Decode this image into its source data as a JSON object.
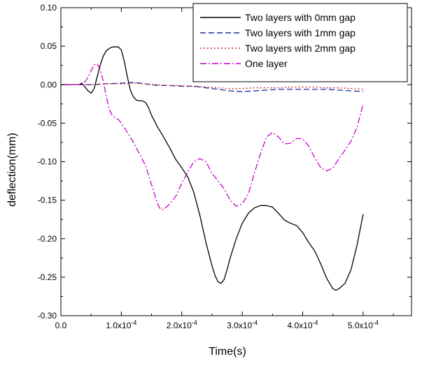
{
  "chart_data": {
    "type": "line",
    "title": "",
    "xlabel": "Time(s)",
    "ylabel": "deflection(mm)",
    "xlim": [
      0,
      0.00058
    ],
    "ylim": [
      -0.3,
      0.1
    ],
    "x_ticks": [
      {
        "value": 0.0,
        "label": "0.0"
      },
      {
        "value": 0.0001,
        "label": "1.0x10",
        "exp": "-4"
      },
      {
        "value": 0.0002,
        "label": "2.0x10",
        "exp": "-4"
      },
      {
        "value": 0.0003,
        "label": "3.0x10",
        "exp": "-4"
      },
      {
        "value": 0.0004,
        "label": "4.0x10",
        "exp": "-4"
      },
      {
        "value": 0.0005,
        "label": "5.0x10",
        "exp": "-4"
      }
    ],
    "y_ticks": [
      {
        "value": 0.1,
        "label": "0.10"
      },
      {
        "value": 0.05,
        "label": "0.05"
      },
      {
        "value": 0.0,
        "label": "0.00"
      },
      {
        "value": -0.05,
        "label": "-0.05"
      },
      {
        "value": -0.1,
        "label": "-0.10"
      },
      {
        "value": -0.15,
        "label": "-0.15"
      },
      {
        "value": -0.2,
        "label": "-0.20"
      },
      {
        "value": -0.25,
        "label": "-0.25"
      },
      {
        "value": -0.3,
        "label": "-0.30"
      }
    ],
    "legend_position": "top-right",
    "series": [
      {
        "name": "Two layers with 0mm gap",
        "color": "#000000",
        "dash": "solid",
        "points": [
          [
            0,
            0
          ],
          [
            3e-05,
            0
          ],
          [
            3.5e-05,
            0.002
          ],
          [
            4e-05,
            -0.003
          ],
          [
            4.5e-05,
            -0.008
          ],
          [
            5e-05,
            -0.011
          ],
          [
            5.5e-05,
            -0.005
          ],
          [
            6e-05,
            0.01
          ],
          [
            6.5e-05,
            0.025
          ],
          [
            7e-05,
            0.037
          ],
          [
            7.5e-05,
            0.044
          ],
          [
            8e-05,
            0.047
          ],
          [
            8.5e-05,
            0.049
          ],
          [
            9e-05,
            0.049
          ],
          [
            9.5e-05,
            0.049
          ],
          [
            0.0001,
            0.045
          ],
          [
            0.000105,
            0.03
          ],
          [
            0.00011,
            0.01
          ],
          [
            0.000115,
            -0.007
          ],
          [
            0.00012,
            -0.016
          ],
          [
            0.000125,
            -0.02
          ],
          [
            0.00013,
            -0.021
          ],
          [
            0.000135,
            -0.021
          ],
          [
            0.00014,
            -0.023
          ],
          [
            0.000145,
            -0.03
          ],
          [
            0.00015,
            -0.04
          ],
          [
            0.00016,
            -0.055
          ],
          [
            0.00017,
            -0.068
          ],
          [
            0.00018,
            -0.082
          ],
          [
            0.00019,
            -0.097
          ],
          [
            0.0002,
            -0.108
          ],
          [
            0.00021,
            -0.12
          ],
          [
            0.00022,
            -0.14
          ],
          [
            0.00023,
            -0.17
          ],
          [
            0.00024,
            -0.205
          ],
          [
            0.00025,
            -0.235
          ],
          [
            0.000255,
            -0.248
          ],
          [
            0.00026,
            -0.256
          ],
          [
            0.000265,
            -0.258
          ],
          [
            0.00027,
            -0.253
          ],
          [
            0.000275,
            -0.24
          ],
          [
            0.00028,
            -0.225
          ],
          [
            0.00029,
            -0.2
          ],
          [
            0.0003,
            -0.18
          ],
          [
            0.00031,
            -0.167
          ],
          [
            0.00032,
            -0.16
          ],
          [
            0.00033,
            -0.157
          ],
          [
            0.00034,
            -0.157
          ],
          [
            0.00035,
            -0.159
          ],
          [
            0.00036,
            -0.167
          ],
          [
            0.00037,
            -0.176
          ],
          [
            0.00038,
            -0.18
          ],
          [
            0.00039,
            -0.183
          ],
          [
            0.0004,
            -0.192
          ],
          [
            0.00041,
            -0.205
          ],
          [
            0.00042,
            -0.216
          ],
          [
            0.00043,
            -0.233
          ],
          [
            0.00044,
            -0.252
          ],
          [
            0.00045,
            -0.265
          ],
          [
            0.000455,
            -0.267
          ],
          [
            0.00046,
            -0.265
          ],
          [
            0.00047,
            -0.258
          ],
          [
            0.00048,
            -0.24
          ],
          [
            0.00049,
            -0.208
          ],
          [
            0.0005,
            -0.168
          ]
        ]
      },
      {
        "name": "Two layers with 1mm gap",
        "color": "#1f2a9e",
        "dash": "8,4",
        "points": [
          [
            0,
            0
          ],
          [
            5e-05,
            0
          ],
          [
            7e-05,
            0.001
          ],
          [
            0.0001,
            0.002
          ],
          [
            0.00012,
            0.003
          ],
          [
            0.00014,
            0.001
          ],
          [
            0.00016,
            -0.001
          ],
          [
            0.00018,
            -0.001
          ],
          [
            0.0002,
            -0.002
          ],
          [
            0.00022,
            -0.002
          ],
          [
            0.00024,
            -0.004
          ],
          [
            0.00026,
            -0.006
          ],
          [
            0.00028,
            -0.008
          ],
          [
            0.0003,
            -0.009
          ],
          [
            0.00032,
            -0.008
          ],
          [
            0.00034,
            -0.007
          ],
          [
            0.00036,
            -0.006
          ],
          [
            0.00038,
            -0.006
          ],
          [
            0.0004,
            -0.006
          ],
          [
            0.00042,
            -0.006
          ],
          [
            0.00044,
            -0.006
          ],
          [
            0.00046,
            -0.007
          ],
          [
            0.00048,
            -0.008
          ],
          [
            0.0005,
            -0.009
          ]
        ]
      },
      {
        "name": "Two layers with 2mm gap",
        "color": "#cc2222",
        "dash": "2,3",
        "points": [
          [
            0,
            0
          ],
          [
            5e-05,
            0
          ],
          [
            7e-05,
            0.001
          ],
          [
            0.0001,
            0.001
          ],
          [
            0.00012,
            0.002
          ],
          [
            0.00014,
            0.001
          ],
          [
            0.00016,
            0.0
          ],
          [
            0.00018,
            -0.001
          ],
          [
            0.0002,
            -0.001
          ],
          [
            0.00022,
            -0.002
          ],
          [
            0.00024,
            -0.003
          ],
          [
            0.00026,
            -0.004
          ],
          [
            0.00028,
            -0.005
          ],
          [
            0.0003,
            -0.005
          ],
          [
            0.00032,
            -0.004
          ],
          [
            0.00034,
            -0.004
          ],
          [
            0.00036,
            -0.004
          ],
          [
            0.00038,
            -0.003
          ],
          [
            0.0004,
            -0.003
          ],
          [
            0.00042,
            -0.003
          ],
          [
            0.00044,
            -0.004
          ],
          [
            0.00046,
            -0.004
          ],
          [
            0.00048,
            -0.005
          ],
          [
            0.0005,
            -0.006
          ]
        ]
      },
      {
        "name": "One layer",
        "color": "#cc00cc",
        "dash": "9,3,2,3",
        "points": [
          [
            0,
            0
          ],
          [
            3e-05,
            0
          ],
          [
            3.5e-05,
            0.001
          ],
          [
            4e-05,
            0.004
          ],
          [
            4.5e-05,
            0.01
          ],
          [
            5e-05,
            0.018
          ],
          [
            5.5e-05,
            0.026
          ],
          [
            6e-05,
            0.027
          ],
          [
            6.5e-05,
            0.02
          ],
          [
            7e-05,
            0.005
          ],
          [
            7.5e-05,
            -0.015
          ],
          [
            8e-05,
            -0.032
          ],
          [
            8.5e-05,
            -0.04
          ],
          [
            9e-05,
            -0.043
          ],
          [
            9.5e-05,
            -0.045
          ],
          [
            0.0001,
            -0.05
          ],
          [
            0.00011,
            -0.062
          ],
          [
            0.00012,
            -0.075
          ],
          [
            0.00013,
            -0.09
          ],
          [
            0.00014,
            -0.105
          ],
          [
            0.00015,
            -0.13
          ],
          [
            0.00016,
            -0.155
          ],
          [
            0.000165,
            -0.162
          ],
          [
            0.00017,
            -0.162
          ],
          [
            0.00018,
            -0.155
          ],
          [
            0.00019,
            -0.145
          ],
          [
            0.0002,
            -0.128
          ],
          [
            0.00021,
            -0.113
          ],
          [
            0.00022,
            -0.1
          ],
          [
            0.00023,
            -0.096
          ],
          [
            0.00024,
            -0.1
          ],
          [
            0.00025,
            -0.115
          ],
          [
            0.00026,
            -0.125
          ],
          [
            0.00027,
            -0.135
          ],
          [
            0.00028,
            -0.15
          ],
          [
            0.00029,
            -0.158
          ],
          [
            0.0003,
            -0.155
          ],
          [
            0.00031,
            -0.142
          ],
          [
            0.00032,
            -0.115
          ],
          [
            0.00033,
            -0.09
          ],
          [
            0.00034,
            -0.068
          ],
          [
            0.00035,
            -0.062
          ],
          [
            0.00036,
            -0.068
          ],
          [
            0.00037,
            -0.077
          ],
          [
            0.00038,
            -0.076
          ],
          [
            0.00039,
            -0.07
          ],
          [
            0.0004,
            -0.07
          ],
          [
            0.00041,
            -0.08
          ],
          [
            0.00042,
            -0.095
          ],
          [
            0.00043,
            -0.108
          ],
          [
            0.00044,
            -0.112
          ],
          [
            0.00045,
            -0.108
          ],
          [
            0.00046,
            -0.096
          ],
          [
            0.00047,
            -0.085
          ],
          [
            0.00048,
            -0.073
          ],
          [
            0.00049,
            -0.055
          ],
          [
            0.0005,
            -0.025
          ]
        ]
      }
    ]
  }
}
